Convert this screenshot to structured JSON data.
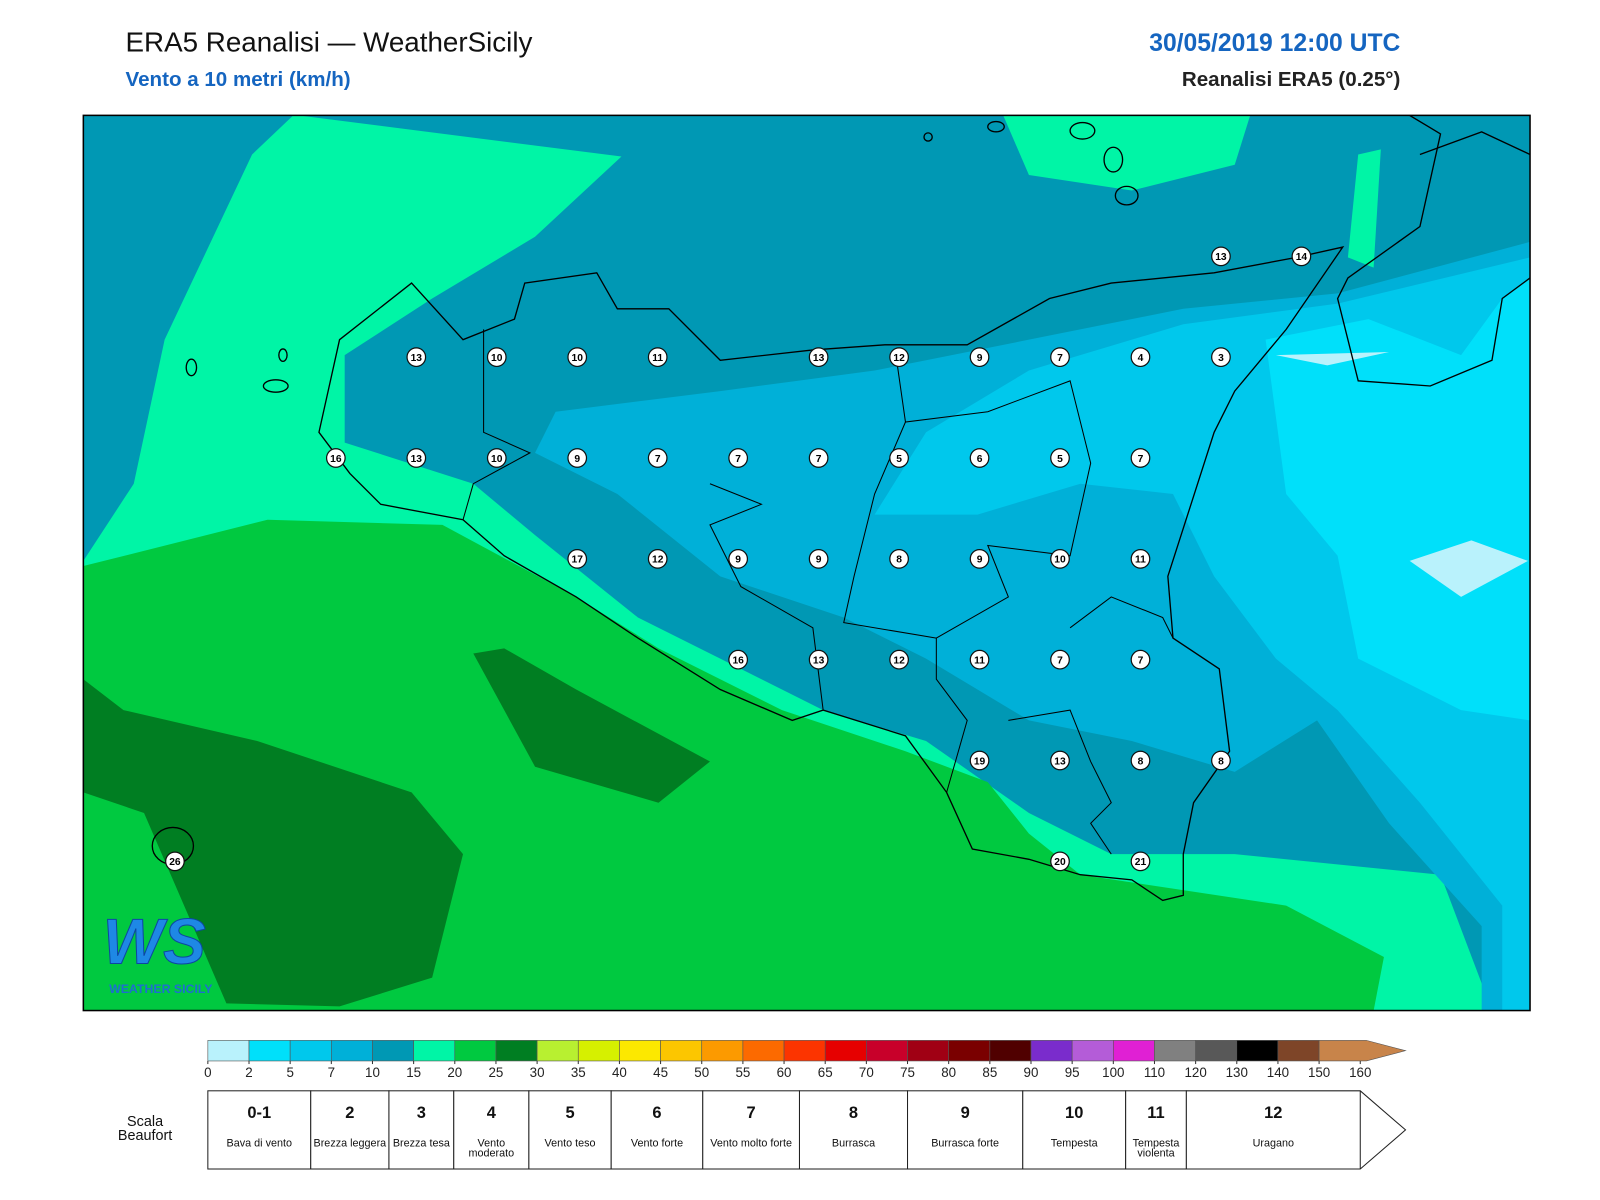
{
  "header": {
    "title": "ERA5 Reanalisi — WeatherSicily",
    "subtitle": "Vento a 10 metri (km/h)",
    "datetime": "30/05/2019 12:00 UTC",
    "source": "Reanalisi ERA5 (0.25°)"
  },
  "map": {
    "wind_grid": [
      [
        null,
        null,
        null,
        null,
        null,
        null,
        null,
        null,
        null,
        null,
        null,
        null,
        null,
        13,
        14
      ],
      [
        null,
        null,
        null,
        13,
        10,
        10,
        11,
        null,
        13,
        12,
        9,
        7,
        4,
        3,
        null
      ],
      [
        null,
        null,
        16,
        13,
        10,
        9,
        7,
        7,
        7,
        5,
        6,
        5,
        7,
        null,
        null
      ],
      [
        null,
        null,
        null,
        null,
        null,
        17,
        12,
        9,
        9,
        8,
        9,
        10,
        11,
        null,
        null
      ],
      [
        null,
        null,
        null,
        null,
        null,
        null,
        null,
        16,
        13,
        12,
        11,
        7,
        7,
        null,
        null
      ],
      [
        null,
        null,
        null,
        null,
        null,
        null,
        null,
        null,
        null,
        null,
        19,
        13,
        8,
        8,
        null
      ],
      [
        26,
        null,
        null,
        null,
        null,
        null,
        null,
        null,
        null,
        null,
        null,
        20,
        21,
        null,
        null
      ]
    ]
  },
  "colorbar": {
    "ticks": [
      0,
      2,
      5,
      7,
      10,
      15,
      20,
      25,
      30,
      35,
      40,
      45,
      50,
      55,
      60,
      65,
      70,
      75,
      80,
      85,
      90,
      95,
      100,
      110,
      120,
      130,
      140,
      150,
      160
    ],
    "colors": [
      "#b9f2fc",
      "#00e0fa",
      "#00c8ec",
      "#00b0d8",
      "#0098b4",
      "#00f5a6",
      "#00c940",
      "#007e22",
      "#b8f030",
      "#d6f000",
      "#fce800",
      "#fcc600",
      "#fc9a00",
      "#fc6a00",
      "#fc3400",
      "#e60000",
      "#c8002a",
      "#a00014",
      "#7a0000",
      "#500000",
      "#7a2ccc",
      "#b45cd8",
      "#e020d4",
      "#808080",
      "#585858",
      "#000000",
      "#7e4528",
      "#c8844a"
    ]
  },
  "beaufort": {
    "label": "Scala Beaufort",
    "levels": [
      {
        "force": "0-1",
        "name": "Bava di vento"
      },
      {
        "force": "2",
        "name": "Brezza leggera"
      },
      {
        "force": "3",
        "name": "Brezza tesa"
      },
      {
        "force": "4",
        "name": "Vento moderato"
      },
      {
        "force": "5",
        "name": "Vento teso"
      },
      {
        "force": "6",
        "name": "Vento forte"
      },
      {
        "force": "7",
        "name": "Vento molto forte"
      },
      {
        "force": "8",
        "name": "Burrasca"
      },
      {
        "force": "9",
        "name": "Burrasca forte"
      },
      {
        "force": "10",
        "name": "Tempesta"
      },
      {
        "force": "11",
        "name": "Tempesta violenta"
      },
      {
        "force": "12",
        "name": "Uragano"
      }
    ]
  },
  "logo": {
    "initials": "WS",
    "name": "WEATHER SICILY"
  }
}
